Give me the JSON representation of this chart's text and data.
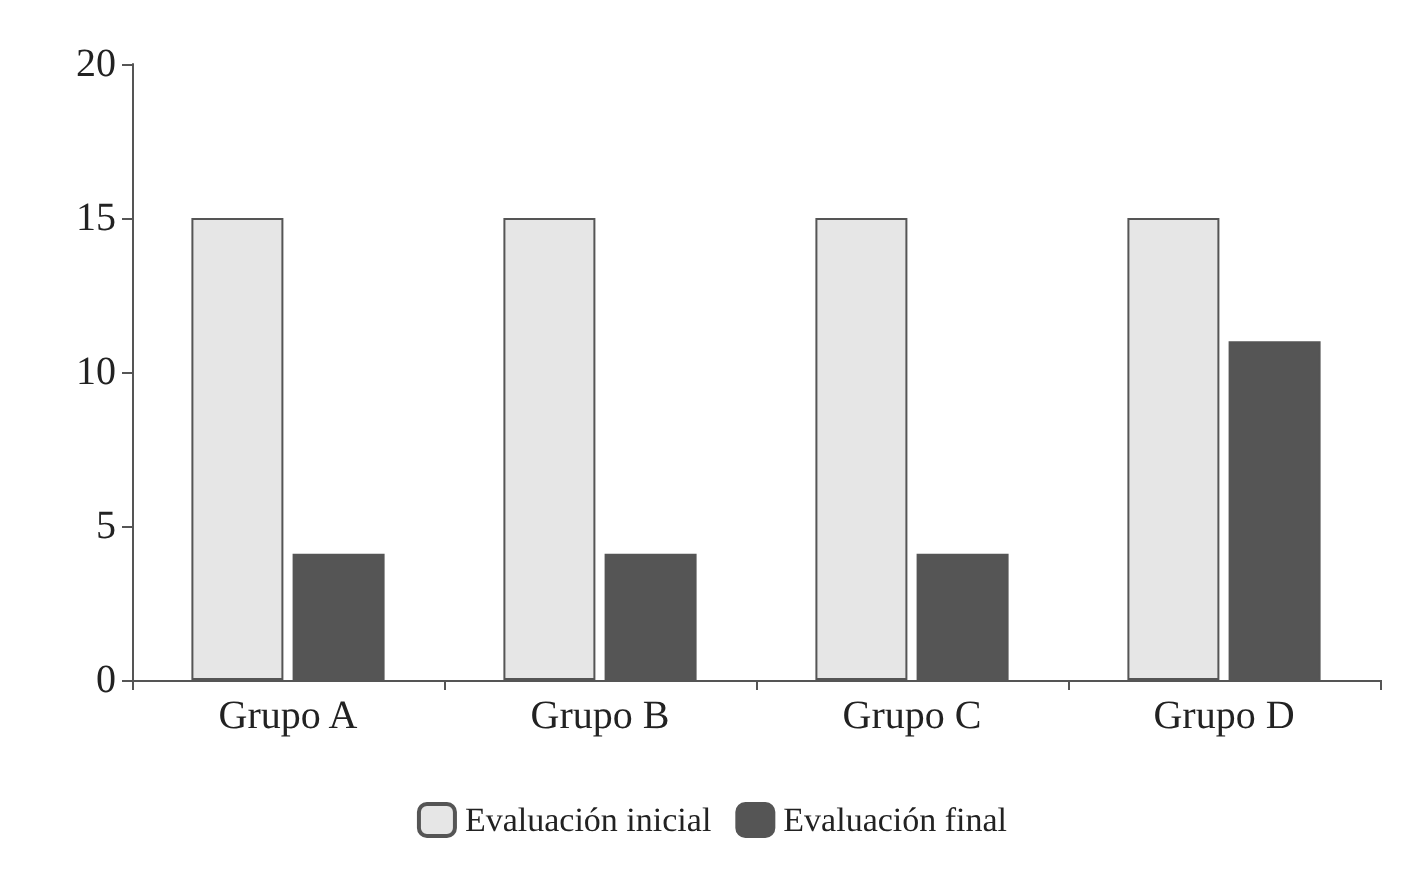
{
  "chart_data": {
    "type": "bar",
    "categories": [
      "Grupo A",
      "Grupo B",
      "Grupo C",
      "Grupo D"
    ],
    "series": [
      {
        "name": "Evaluación inicial",
        "color": "#e6e6e6",
        "values": [
          15,
          15,
          15,
          15
        ]
      },
      {
        "name": "Evaluación final",
        "color": "#555555",
        "values": [
          4.1,
          4.1,
          4.1,
          11
        ]
      }
    ],
    "ylim": [
      0,
      20
    ],
    "yticks": [
      0,
      5,
      10,
      15,
      20
    ],
    "grid": false,
    "legend": "bottom"
  }
}
